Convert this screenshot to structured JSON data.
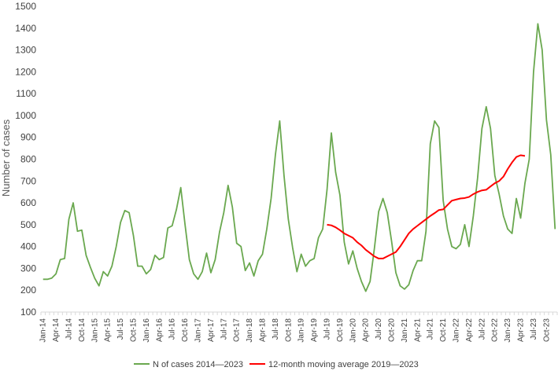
{
  "chart_data": {
    "type": "line",
    "title": "",
    "xlabel": "",
    "ylabel": "Number of cases",
    "ylim": [
      100,
      1500
    ],
    "yticks": [
      100,
      200,
      300,
      400,
      500,
      600,
      700,
      800,
      900,
      1000,
      1100,
      1200,
      1300,
      1400,
      1500
    ],
    "grid": false,
    "legend": "bottom",
    "x_start": "Jan-14",
    "x_tick_labels": [
      "Jan-14",
      "Apr-14",
      "Jul-14",
      "Oct-14",
      "Jan-15",
      "Apr-15",
      "Jul-15",
      "Oct-15",
      "Jan-16",
      "Apr-16",
      "Jul-16",
      "Oct-16",
      "Jan-17",
      "Apr-17",
      "Jul-17",
      "Oct-17",
      "Jan-18",
      "Apr-18",
      "Jul-18",
      "Oct-18",
      "Jan-19",
      "Apr-19",
      "Jul-19",
      "Oct-19",
      "Jan-20",
      "Apr-20",
      "Jul-20",
      "Oct-20",
      "Jan-21",
      "Apr-21",
      "Jul-21",
      "Oct-21",
      "Jan-22",
      "Apr-22",
      "Jul-22",
      "Oct-22",
      "Jan-23",
      "Apr-23",
      "Jul-23",
      "Oct-23"
    ],
    "series": [
      {
        "name": "N of cases 2014—2023",
        "color": "#6aa84f",
        "start_month": "Jan-14",
        "values": [
          250,
          250,
          255,
          275,
          340,
          345,
          525,
          600,
          470,
          475,
          360,
          305,
          255,
          220,
          285,
          265,
          310,
          400,
          510,
          565,
          555,
          450,
          310,
          310,
          275,
          295,
          360,
          340,
          350,
          485,
          495,
          570,
          670,
          500,
          340,
          275,
          250,
          285,
          370,
          280,
          340,
          465,
          555,
          680,
          580,
          415,
          400,
          290,
          325,
          265,
          335,
          365,
          480,
          620,
          820,
          975,
          725,
          525,
          395,
          285,
          365,
          310,
          335,
          345,
          440,
          480,
          660,
          920,
          740,
          635,
          420,
          320,
          380,
          300,
          240,
          195,
          240,
          390,
          560,
          620,
          555,
          425,
          280,
          220,
          205,
          225,
          290,
          335,
          335,
          470,
          870,
          975,
          945,
          610,
          480,
          400,
          390,
          410,
          500,
          400,
          540,
          715,
          940,
          1040,
          940,
          725,
          640,
          540,
          480,
          460,
          620,
          530,
          690,
          800,
          1200,
          1420,
          1300,
          980,
          820,
          480
        ]
      },
      {
        "name": "12-month moving average 2019—2023",
        "color": "#ff0000",
        "start_month": "Jul-19",
        "values": [
          500,
          497,
          488,
          475,
          460,
          450,
          440,
          420,
          405,
          385,
          370,
          355,
          345,
          345,
          355,
          365,
          375,
          400,
          430,
          460,
          480,
          495,
          510,
          525,
          540,
          553,
          567,
          570,
          590,
          610,
          615,
          620,
          622,
          627,
          640,
          650,
          657,
          660,
          675,
          690,
          700,
          720,
          755,
          785,
          810,
          818,
          815
        ]
      }
    ]
  }
}
